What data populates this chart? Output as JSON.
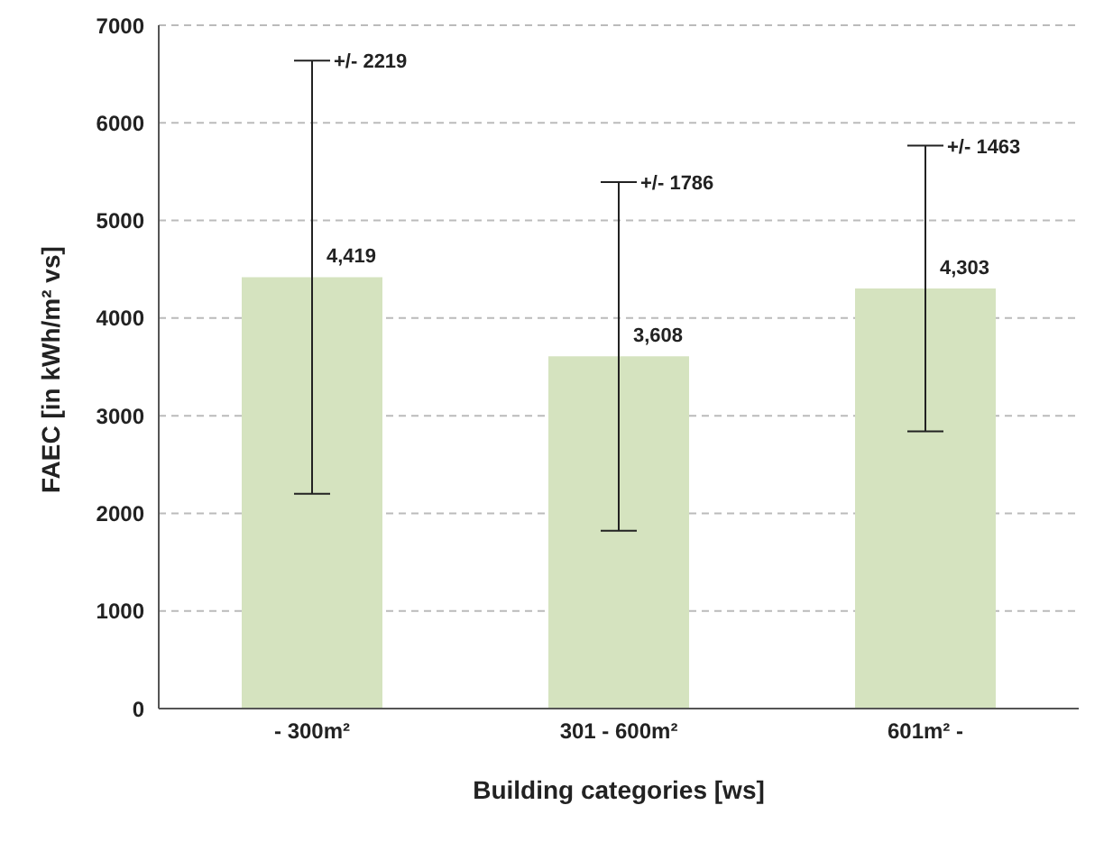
{
  "chart_data": {
    "type": "bar",
    "xlabel": "Building categories [ws]",
    "ylabel": "FAEC [in kWh/m² vs]",
    "categories": [
      "- 300m²",
      "301 - 600m²",
      "601m² -"
    ],
    "values": [
      4419,
      3608,
      4303
    ],
    "color": "#d5e3bf",
    "errors": [
      2219,
      1786,
      1463
    ],
    "value_labels": [
      "4,419",
      "3,608",
      "4,303"
    ],
    "annotations": [
      {
        "text": "+/- 2219",
        "x": "- 300m²",
        "y": 6638
      },
      {
        "text": "+/- 1786",
        "x": "301 - 600m²",
        "y": 5394
      },
      {
        "text": "+/- 1463",
        "x": "601m² -",
        "y": 5766
      }
    ],
    "ylim": [
      0,
      7000
    ],
    "yticks": [
      0,
      1000,
      2000,
      3000,
      4000,
      5000,
      6000,
      7000
    ],
    "grid": "y"
  }
}
